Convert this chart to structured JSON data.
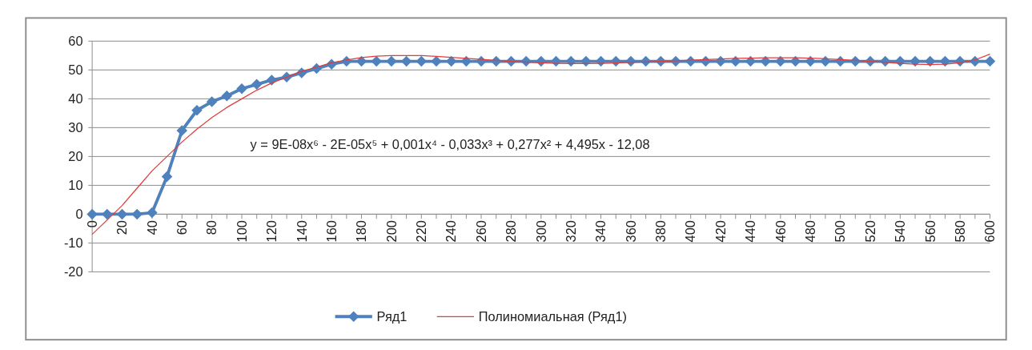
{
  "chart_data": {
    "type": "line",
    "categories": [
      "0",
      null,
      "20",
      null,
      "40",
      null,
      "60",
      null,
      "80",
      null,
      "100",
      null,
      "120",
      null,
      "140",
      null,
      "160",
      null,
      "180",
      null,
      "200",
      null,
      "220",
      null,
      "240",
      null,
      "260",
      null,
      "280",
      null,
      "300",
      null,
      "320",
      null,
      "340",
      null,
      "360",
      null,
      "380",
      null,
      "400",
      null,
      "420",
      null,
      "440",
      null,
      "460",
      null,
      "480",
      null,
      "500",
      null,
      "520",
      null,
      "540",
      null,
      "560",
      null,
      "580",
      null,
      "600"
    ],
    "series": [
      {
        "name": "Ряд1",
        "color": "#4f81bd",
        "marker": "diamond",
        "values": [
          0,
          0,
          0,
          0,
          0.5,
          13,
          29,
          36,
          39,
          41,
          43.5,
          45,
          46.5,
          47.5,
          49,
          50.5,
          52,
          53,
          53,
          53,
          53,
          53,
          53,
          53,
          53,
          53,
          53,
          53,
          53,
          53,
          53,
          53,
          53,
          53,
          53,
          53,
          53,
          53,
          53,
          53,
          53,
          53,
          53,
          53,
          53,
          53,
          53,
          53,
          53,
          53,
          53,
          53,
          53,
          53,
          53,
          53,
          53,
          53,
          53,
          53,
          53
        ]
      },
      {
        "name": "Полиномиальная (Ряд1)",
        "color": "#e03c3c",
        "marker": "none",
        "values": [
          -7,
          -2,
          3,
          9,
          15,
          20,
          25,
          29.5,
          33.5,
          37,
          40,
          43,
          45.5,
          47.5,
          49.5,
          51,
          52.5,
          53.5,
          54.3,
          54.8,
          55,
          55,
          55,
          54.7,
          54.4,
          54,
          53.7,
          53.3,
          53,
          52.7,
          52.5,
          52.3,
          52.2,
          52.2,
          52.3,
          52.4,
          52.6,
          52.8,
          53,
          53.2,
          53.4,
          53.6,
          53.8,
          54,
          54.1,
          54.2,
          54.2,
          54.2,
          54.1,
          53.9,
          53.6,
          53.3,
          53,
          52.6,
          52.3,
          52,
          51.9,
          52,
          52.5,
          53.5,
          55.5
        ]
      }
    ],
    "ylim": [
      -20,
      60
    ],
    "yticks": [
      -20,
      -10,
      0,
      10,
      20,
      30,
      40,
      50,
      60
    ],
    "grid": "y",
    "legend": "bottom",
    "annotations": [
      "y = 9E-08x⁶ - 2E-05x⁵ + 0,001x⁴ - 0,033x³ + 0,277x² + 4,495x - 12,08"
    ]
  }
}
